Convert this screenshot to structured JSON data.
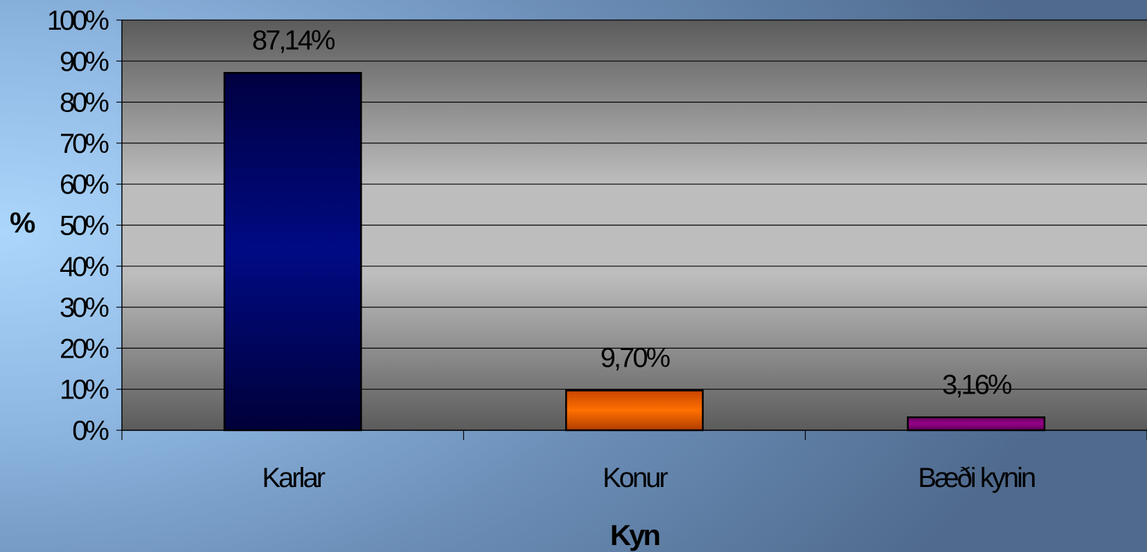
{
  "chart_data": {
    "type": "bar",
    "title": "",
    "xlabel": "Kyn",
    "ylabel": "%",
    "categories": [
      "Karlar",
      "Konur",
      "Bæði kynin"
    ],
    "values": [
      87.14,
      9.7,
      3.16
    ],
    "data_labels": [
      "87,14%",
      "9,70%",
      "3,16%"
    ],
    "bar_colors": [
      "#000a78",
      "#ff6a00",
      "#8b007e"
    ],
    "ylim": [
      0,
      100
    ],
    "yticks": [
      0,
      10,
      20,
      30,
      40,
      50,
      60,
      70,
      80,
      90,
      100
    ],
    "ytick_labels": [
      "0%",
      "10%",
      "20%",
      "30%",
      "40%",
      "50%",
      "60%",
      "70%",
      "80%",
      "90%",
      "100%"
    ],
    "grid": true,
    "legend": "none",
    "plot_background": "gray-gradient"
  }
}
